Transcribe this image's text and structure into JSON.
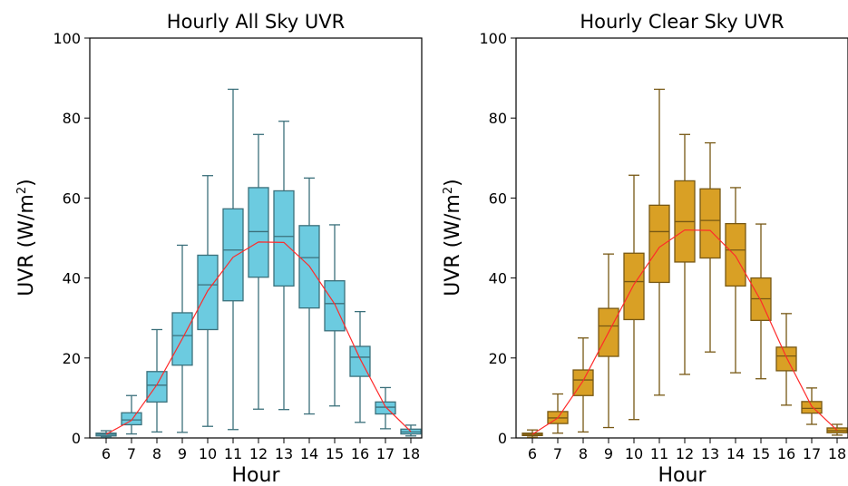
{
  "chart_data": [
    {
      "type": "box",
      "title": "Hourly All Sky UVR",
      "xlabel": "Hour",
      "ylabel": "UVR (W/m²)",
      "ylabel_main": "UVR (W/m",
      "ylabel_sup": "2",
      "ylabel_end": ")",
      "ylim": [
        0,
        100
      ],
      "yticks": [
        0,
        20,
        40,
        60,
        80,
        100
      ],
      "box_color": "#6ccbe0",
      "mean_line_color": "#ff2a2a",
      "categories": [
        "6",
        "7",
        "8",
        "9",
        "10",
        "11",
        "12",
        "13",
        "14",
        "15",
        "16",
        "17",
        "18"
      ],
      "boxes": [
        {
          "whislo": 0.2,
          "q1": 0.5,
          "med": 0.9,
          "q3": 1.2,
          "whishi": 1.8
        },
        {
          "whislo": 1.0,
          "q1": 3.3,
          "med": 4.5,
          "q3": 6.3,
          "whishi": 10.6
        },
        {
          "whislo": 1.5,
          "q1": 9.0,
          "med": 13.2,
          "q3": 16.6,
          "whishi": 27.1
        },
        {
          "whislo": 1.4,
          "q1": 18.2,
          "med": 25.6,
          "q3": 31.3,
          "whishi": 48.2
        },
        {
          "whislo": 2.9,
          "q1": 27.1,
          "med": 38.3,
          "q3": 45.7,
          "whishi": 65.6
        },
        {
          "whislo": 2.1,
          "q1": 34.3,
          "med": 47.0,
          "q3": 57.3,
          "whishi": 87.2
        },
        {
          "whislo": 7.2,
          "q1": 40.2,
          "med": 51.6,
          "q3": 62.6,
          "whishi": 75.9
        },
        {
          "whislo": 7.1,
          "q1": 38.0,
          "med": 50.4,
          "q3": 61.8,
          "whishi": 79.2
        },
        {
          "whislo": 6.0,
          "q1": 32.5,
          "med": 45.1,
          "q3": 53.1,
          "whishi": 65.0
        },
        {
          "whislo": 8.0,
          "q1": 26.8,
          "med": 33.6,
          "q3": 39.3,
          "whishi": 53.3
        },
        {
          "whislo": 3.9,
          "q1": 15.4,
          "med": 20.2,
          "q3": 22.9,
          "whishi": 31.6
        },
        {
          "whislo": 2.3,
          "q1": 6.0,
          "med": 7.7,
          "q3": 9.0,
          "whishi": 12.6
        },
        {
          "whislo": 0.5,
          "q1": 1.0,
          "med": 1.5,
          "q3": 2.2,
          "whishi": 3.2
        }
      ],
      "mean_line": [
        0.9,
        4.4,
        13.3,
        24.8,
        36.8,
        45.2,
        49.0,
        48.9,
        43.0,
        33.5,
        19.8,
        7.8,
        1.6
      ]
    },
    {
      "type": "box",
      "title": "Hourly Clear Sky UVR",
      "xlabel": "Hour",
      "ylabel": "UVR (W/m²)",
      "ylabel_main": "UVR (W/m",
      "ylabel_sup": "2",
      "ylabel_end": ")",
      "ylim": [
        0,
        100
      ],
      "yticks": [
        0,
        20,
        40,
        60,
        80,
        100
      ],
      "box_color": "#d9a025",
      "mean_line_color": "#ff2a2a",
      "categories": [
        "6",
        "7",
        "8",
        "9",
        "10",
        "11",
        "12",
        "13",
        "14",
        "15",
        "16",
        "17",
        "18"
      ],
      "boxes": [
        {
          "whislo": 0.2,
          "q1": 0.6,
          "med": 0.9,
          "q3": 1.2,
          "whishi": 2.0
        },
        {
          "whislo": 1.2,
          "q1": 3.6,
          "med": 5.0,
          "q3": 6.6,
          "whishi": 11.0
        },
        {
          "whislo": 1.5,
          "q1": 10.6,
          "med": 14.5,
          "q3": 17.0,
          "whishi": 25.0
        },
        {
          "whislo": 2.6,
          "q1": 20.4,
          "med": 28.0,
          "q3": 32.4,
          "whishi": 46.0
        },
        {
          "whislo": 4.6,
          "q1": 29.6,
          "med": 39.1,
          "q3": 46.2,
          "whishi": 65.7
        },
        {
          "whislo": 10.7,
          "q1": 38.9,
          "med": 51.6,
          "q3": 58.2,
          "whishi": 87.2
        },
        {
          "whislo": 15.9,
          "q1": 44.0,
          "med": 54.1,
          "q3": 64.3,
          "whishi": 75.9
        },
        {
          "whislo": 21.5,
          "q1": 45.0,
          "med": 54.4,
          "q3": 62.3,
          "whishi": 73.8
        },
        {
          "whislo": 16.3,
          "q1": 38.0,
          "med": 47.0,
          "q3": 53.6,
          "whishi": 62.6
        },
        {
          "whislo": 14.8,
          "q1": 29.4,
          "med": 34.8,
          "q3": 40.0,
          "whishi": 53.5
        },
        {
          "whislo": 8.2,
          "q1": 16.8,
          "med": 20.5,
          "q3": 22.7,
          "whishi": 31.1
        },
        {
          "whislo": 3.4,
          "q1": 6.2,
          "med": 7.4,
          "q3": 9.1,
          "whishi": 12.5
        },
        {
          "whislo": 0.7,
          "q1": 1.3,
          "med": 1.8,
          "q3": 2.5,
          "whishi": 3.4
        }
      ],
      "mean_line": [
        0.9,
        5.0,
        14.3,
        26.4,
        38.4,
        47.7,
        52.0,
        51.9,
        45.5,
        34.3,
        20.2,
        7.9,
        1.9
      ]
    }
  ]
}
